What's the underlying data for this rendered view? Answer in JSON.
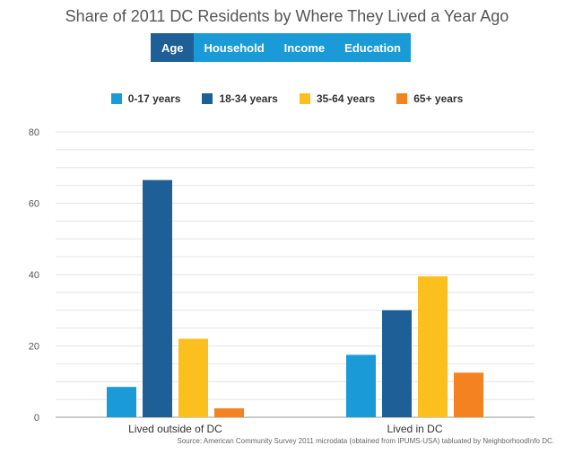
{
  "colors": {
    "tab_bar": "#1a9bd7",
    "tab_active": "#1d5f96",
    "grid": "#e4e4e4",
    "axis": "#999999"
  },
  "tabs": [
    {
      "label": "Age",
      "active": true
    },
    {
      "label": "Household",
      "active": false
    },
    {
      "label": "Income",
      "active": false
    },
    {
      "label": "Education",
      "active": false
    }
  ],
  "source": "Source: American Community Survey 2011 microdata (obtained from IPUMS-USA) tabluated by NeighborhoodInfo DC.",
  "chart_data": {
    "type": "bar",
    "title": "Share of 2011 DC Residents by Where They Lived a Year Ago",
    "categories": [
      "Lived outside of DC",
      "Lived in DC"
    ],
    "series": [
      {
        "name": "0-17 years",
        "color": "#1a9bd7",
        "values": [
          8.5,
          17.5
        ]
      },
      {
        "name": "18-34 years",
        "color": "#1d5f96",
        "values": [
          66.5,
          30
        ]
      },
      {
        "name": "35-64 years",
        "color": "#fbbf1e",
        "values": [
          22,
          39.5
        ]
      },
      {
        "name": "65+ years",
        "color": "#f58220",
        "values": [
          2.5,
          12.5
        ]
      }
    ],
    "yticks": [
      0,
      20,
      40,
      60,
      80
    ],
    "ylim": [
      0,
      80
    ],
    "xlabel": "",
    "ylabel": "",
    "grid": true,
    "legend_position": "top"
  }
}
